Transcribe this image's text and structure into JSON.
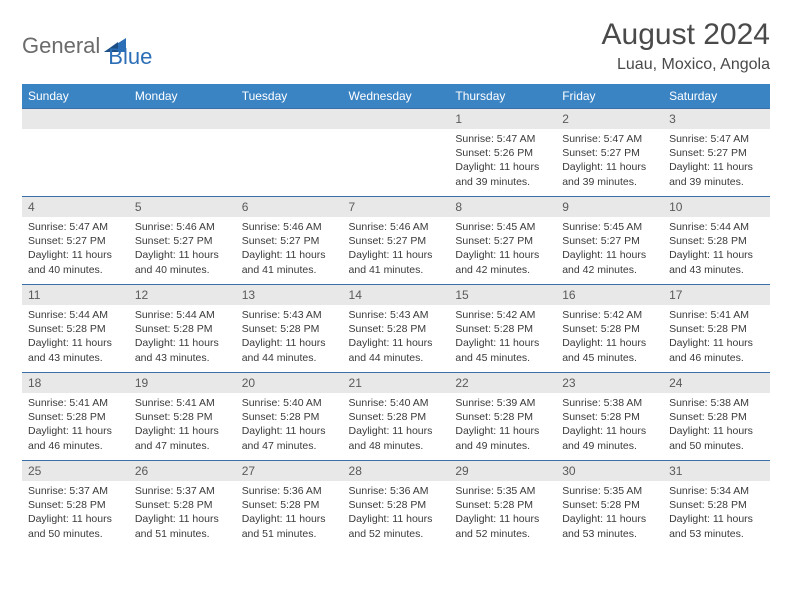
{
  "logo": {
    "text1": "General",
    "text2": "Blue"
  },
  "title": "August 2024",
  "location": "Luau, Moxico, Angola",
  "colors": {
    "header_bg": "#3b84c4",
    "header_text": "#ffffff",
    "daynum_bg": "#e8e8e8",
    "row_border": "#3b6fa5",
    "logo_gray": "#6b6b6b",
    "logo_blue": "#2d6fb6"
  },
  "weekdays": [
    "Sunday",
    "Monday",
    "Tuesday",
    "Wednesday",
    "Thursday",
    "Friday",
    "Saturday"
  ],
  "weeks": [
    [
      {
        "n": "",
        "lines": []
      },
      {
        "n": "",
        "lines": []
      },
      {
        "n": "",
        "lines": []
      },
      {
        "n": "",
        "lines": []
      },
      {
        "n": "1",
        "lines": [
          "Sunrise: 5:47 AM",
          "Sunset: 5:26 PM",
          "Daylight: 11 hours and 39 minutes."
        ]
      },
      {
        "n": "2",
        "lines": [
          "Sunrise: 5:47 AM",
          "Sunset: 5:27 PM",
          "Daylight: 11 hours and 39 minutes."
        ]
      },
      {
        "n": "3",
        "lines": [
          "Sunrise: 5:47 AM",
          "Sunset: 5:27 PM",
          "Daylight: 11 hours and 39 minutes."
        ]
      }
    ],
    [
      {
        "n": "4",
        "lines": [
          "Sunrise: 5:47 AM",
          "Sunset: 5:27 PM",
          "Daylight: 11 hours and 40 minutes."
        ]
      },
      {
        "n": "5",
        "lines": [
          "Sunrise: 5:46 AM",
          "Sunset: 5:27 PM",
          "Daylight: 11 hours and 40 minutes."
        ]
      },
      {
        "n": "6",
        "lines": [
          "Sunrise: 5:46 AM",
          "Sunset: 5:27 PM",
          "Daylight: 11 hours and 41 minutes."
        ]
      },
      {
        "n": "7",
        "lines": [
          "Sunrise: 5:46 AM",
          "Sunset: 5:27 PM",
          "Daylight: 11 hours and 41 minutes."
        ]
      },
      {
        "n": "8",
        "lines": [
          "Sunrise: 5:45 AM",
          "Sunset: 5:27 PM",
          "Daylight: 11 hours and 42 minutes."
        ]
      },
      {
        "n": "9",
        "lines": [
          "Sunrise: 5:45 AM",
          "Sunset: 5:27 PM",
          "Daylight: 11 hours and 42 minutes."
        ]
      },
      {
        "n": "10",
        "lines": [
          "Sunrise: 5:44 AM",
          "Sunset: 5:28 PM",
          "Daylight: 11 hours and 43 minutes."
        ]
      }
    ],
    [
      {
        "n": "11",
        "lines": [
          "Sunrise: 5:44 AM",
          "Sunset: 5:28 PM",
          "Daylight: 11 hours and 43 minutes."
        ]
      },
      {
        "n": "12",
        "lines": [
          "Sunrise: 5:44 AM",
          "Sunset: 5:28 PM",
          "Daylight: 11 hours and 43 minutes."
        ]
      },
      {
        "n": "13",
        "lines": [
          "Sunrise: 5:43 AM",
          "Sunset: 5:28 PM",
          "Daylight: 11 hours and 44 minutes."
        ]
      },
      {
        "n": "14",
        "lines": [
          "Sunrise: 5:43 AM",
          "Sunset: 5:28 PM",
          "Daylight: 11 hours and 44 minutes."
        ]
      },
      {
        "n": "15",
        "lines": [
          "Sunrise: 5:42 AM",
          "Sunset: 5:28 PM",
          "Daylight: 11 hours and 45 minutes."
        ]
      },
      {
        "n": "16",
        "lines": [
          "Sunrise: 5:42 AM",
          "Sunset: 5:28 PM",
          "Daylight: 11 hours and 45 minutes."
        ]
      },
      {
        "n": "17",
        "lines": [
          "Sunrise: 5:41 AM",
          "Sunset: 5:28 PM",
          "Daylight: 11 hours and 46 minutes."
        ]
      }
    ],
    [
      {
        "n": "18",
        "lines": [
          "Sunrise: 5:41 AM",
          "Sunset: 5:28 PM",
          "Daylight: 11 hours and 46 minutes."
        ]
      },
      {
        "n": "19",
        "lines": [
          "Sunrise: 5:41 AM",
          "Sunset: 5:28 PM",
          "Daylight: 11 hours and 47 minutes."
        ]
      },
      {
        "n": "20",
        "lines": [
          "Sunrise: 5:40 AM",
          "Sunset: 5:28 PM",
          "Daylight: 11 hours and 47 minutes."
        ]
      },
      {
        "n": "21",
        "lines": [
          "Sunrise: 5:40 AM",
          "Sunset: 5:28 PM",
          "Daylight: 11 hours and 48 minutes."
        ]
      },
      {
        "n": "22",
        "lines": [
          "Sunrise: 5:39 AM",
          "Sunset: 5:28 PM",
          "Daylight: 11 hours and 49 minutes."
        ]
      },
      {
        "n": "23",
        "lines": [
          "Sunrise: 5:38 AM",
          "Sunset: 5:28 PM",
          "Daylight: 11 hours and 49 minutes."
        ]
      },
      {
        "n": "24",
        "lines": [
          "Sunrise: 5:38 AM",
          "Sunset: 5:28 PM",
          "Daylight: 11 hours and 50 minutes."
        ]
      }
    ],
    [
      {
        "n": "25",
        "lines": [
          "Sunrise: 5:37 AM",
          "Sunset: 5:28 PM",
          "Daylight: 11 hours and 50 minutes."
        ]
      },
      {
        "n": "26",
        "lines": [
          "Sunrise: 5:37 AM",
          "Sunset: 5:28 PM",
          "Daylight: 11 hours and 51 minutes."
        ]
      },
      {
        "n": "27",
        "lines": [
          "Sunrise: 5:36 AM",
          "Sunset: 5:28 PM",
          "Daylight: 11 hours and 51 minutes."
        ]
      },
      {
        "n": "28",
        "lines": [
          "Sunrise: 5:36 AM",
          "Sunset: 5:28 PM",
          "Daylight: 11 hours and 52 minutes."
        ]
      },
      {
        "n": "29",
        "lines": [
          "Sunrise: 5:35 AM",
          "Sunset: 5:28 PM",
          "Daylight: 11 hours and 52 minutes."
        ]
      },
      {
        "n": "30",
        "lines": [
          "Sunrise: 5:35 AM",
          "Sunset: 5:28 PM",
          "Daylight: 11 hours and 53 minutes."
        ]
      },
      {
        "n": "31",
        "lines": [
          "Sunrise: 5:34 AM",
          "Sunset: 5:28 PM",
          "Daylight: 11 hours and 53 minutes."
        ]
      }
    ]
  ]
}
